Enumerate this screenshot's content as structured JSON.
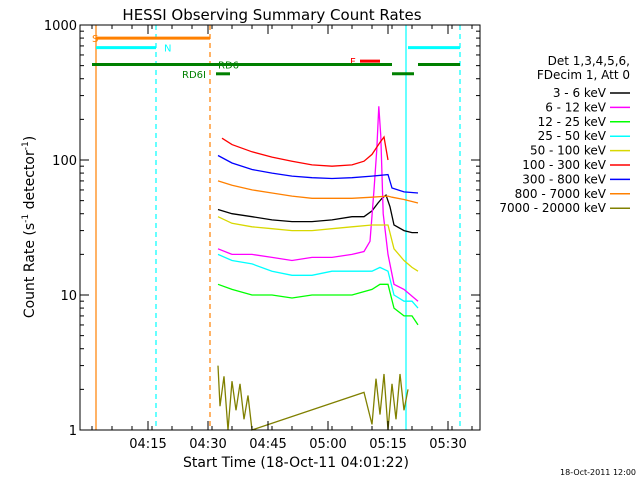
{
  "chart_data": {
    "type": "line",
    "title": "HESSI Observing Summary Count Rates",
    "xlabel": "Start Time (18-Oct-11 04:01:22)",
    "ylabel_main": "Count Rate (s",
    "ylabel_sup": "-1",
    "ylabel_tail": " detector",
    "ylabel_end": ")",
    "y_scale": "log",
    "ylim": [
      1,
      1000
    ],
    "xlim_min": [
      1,
      75
    ],
    "y_ticks": [
      {
        "value": 1,
        "label": "1"
      },
      {
        "value": 10,
        "label": "10"
      },
      {
        "value": 100,
        "label": "100"
      },
      {
        "value": 1000,
        "label": "1000"
      }
    ],
    "x_ticks": [
      {
        "value": 14,
        "label": "04:15"
      },
      {
        "value": 29,
        "label": "04:30"
      },
      {
        "value": 44,
        "label": "04:45"
      },
      {
        "value": 59,
        "label": "05:00"
      },
      {
        "value": 74,
        "label": "05:15"
      },
      {
        "value": 89,
        "label": "05:30"
      }
    ],
    "legend_header": [
      "Det 1,3,4,5,6,",
      "FDecim 1, Att 0"
    ],
    "legend_placement": "right",
    "series": [
      {
        "name": "3 - 6 keV",
        "color": "#000000",
        "values": [
          [
            31.5,
            43
          ],
          [
            35,
            40
          ],
          [
            40,
            38
          ],
          [
            45,
            36
          ],
          [
            50,
            35
          ],
          [
            55,
            35
          ],
          [
            60,
            36
          ],
          [
            65,
            38
          ],
          [
            68,
            38
          ],
          [
            70,
            42
          ],
          [
            71.5,
            48
          ],
          [
            72.5,
            52
          ],
          [
            73.5,
            55
          ],
          [
            74.5,
            45
          ],
          [
            75.5,
            33
          ],
          [
            78,
            30
          ],
          [
            80,
            29
          ],
          [
            81.5,
            29
          ]
        ]
      },
      {
        "name": "6 - 12 keV",
        "color": "#ff00ff",
        "values": [
          [
            31.5,
            22
          ],
          [
            35,
            20
          ],
          [
            40,
            20
          ],
          [
            45,
            19
          ],
          [
            50,
            18
          ],
          [
            55,
            19
          ],
          [
            60,
            19
          ],
          [
            65,
            20
          ],
          [
            68,
            21
          ],
          [
            69.5,
            25
          ],
          [
            70.5,
            60
          ],
          [
            71.2,
            120
          ],
          [
            71.7,
            250
          ],
          [
            72.2,
            150
          ],
          [
            72.8,
            40
          ],
          [
            74,
            20
          ],
          [
            75.5,
            12
          ],
          [
            78,
            11
          ],
          [
            81.5,
            9
          ]
        ]
      },
      {
        "name": "12 - 25 keV",
        "color": "#00ff00",
        "values": [
          [
            31.5,
            12
          ],
          [
            35,
            11
          ],
          [
            40,
            10
          ],
          [
            45,
            10
          ],
          [
            50,
            9.5
          ],
          [
            55,
            10
          ],
          [
            60,
            10
          ],
          [
            65,
            10
          ],
          [
            70,
            11
          ],
          [
            72,
            12
          ],
          [
            74,
            12
          ],
          [
            75.5,
            8
          ],
          [
            78,
            7
          ],
          [
            80,
            7
          ],
          [
            81.5,
            6
          ]
        ]
      },
      {
        "name": "25 - 50 keV",
        "color": "#00ffff",
        "values": [
          [
            31.5,
            20
          ],
          [
            35,
            18
          ],
          [
            40,
            17
          ],
          [
            45,
            15
          ],
          [
            50,
            14
          ],
          [
            55,
            14
          ],
          [
            60,
            15
          ],
          [
            65,
            15
          ],
          [
            70,
            15
          ],
          [
            72,
            16
          ],
          [
            74,
            15
          ],
          [
            75.5,
            10
          ],
          [
            78,
            9
          ],
          [
            80,
            9
          ],
          [
            81.5,
            8
          ]
        ]
      },
      {
        "name": "50 - 100 keV",
        "color": "#d8d800",
        "values": [
          [
            31.5,
            38
          ],
          [
            35,
            34
          ],
          [
            40,
            32
          ],
          [
            45,
            31
          ],
          [
            50,
            30
          ],
          [
            55,
            30
          ],
          [
            60,
            31
          ],
          [
            65,
            32
          ],
          [
            70,
            33
          ],
          [
            74,
            33
          ],
          [
            75.5,
            22
          ],
          [
            78,
            18
          ],
          [
            80,
            16
          ],
          [
            81.5,
            15
          ]
        ]
      },
      {
        "name": "100 - 300 keV",
        "color": "#ff0000",
        "values": [
          [
            32.5,
            145
          ],
          [
            35,
            130
          ],
          [
            40,
            115
          ],
          [
            45,
            105
          ],
          [
            50,
            98
          ],
          [
            55,
            92
          ],
          [
            60,
            90
          ],
          [
            65,
            92
          ],
          [
            68,
            98
          ],
          [
            70,
            110
          ],
          [
            72,
            135
          ],
          [
            73,
            148
          ],
          [
            74,
            100
          ]
        ]
      },
      {
        "name": "300 - 800 keV",
        "color": "#0000ff",
        "values": [
          [
            31.5,
            108
          ],
          [
            35,
            95
          ],
          [
            40,
            85
          ],
          [
            45,
            80
          ],
          [
            50,
            76
          ],
          [
            55,
            74
          ],
          [
            60,
            73
          ],
          [
            65,
            74
          ],
          [
            70,
            76
          ],
          [
            74,
            78
          ],
          [
            75,
            62
          ],
          [
            78,
            58
          ],
          [
            81.5,
            57
          ]
        ]
      },
      {
        "name": "800 - 7000 keV",
        "color": "#ff8000",
        "values": [
          [
            31.5,
            70
          ],
          [
            35,
            65
          ],
          [
            40,
            60
          ],
          [
            45,
            57
          ],
          [
            50,
            54
          ],
          [
            55,
            52
          ],
          [
            60,
            52
          ],
          [
            65,
            52
          ],
          [
            70,
            53
          ],
          [
            74,
            54
          ],
          [
            75,
            53
          ],
          [
            78,
            51
          ],
          [
            81.5,
            48
          ]
        ]
      },
      {
        "name": "7000 - 20000 keV",
        "color": "#808000",
        "values": [
          [
            31.5,
            3
          ],
          [
            32,
            1.5
          ],
          [
            33,
            2.5
          ],
          [
            34,
            1
          ],
          [
            35,
            2.3
          ],
          [
            36,
            1.4
          ],
          [
            37,
            2.2
          ],
          [
            38,
            1.2
          ],
          [
            39,
            1.8
          ],
          [
            40,
            1
          ],
          [
            68,
            1.9
          ],
          [
            70,
            1.1
          ],
          [
            71,
            2.4
          ],
          [
            72,
            1.3
          ],
          [
            73,
            2.6
          ],
          [
            74,
            1
          ],
          [
            75,
            2.2
          ],
          [
            76,
            1.2
          ],
          [
            77,
            2.6
          ],
          [
            78,
            1.4
          ],
          [
            79,
            2
          ]
        ]
      }
    ],
    "flags": [
      {
        "label": "S",
        "color": "#ff8000",
        "y": 800,
        "segments": [
          [
            1,
            29.5
          ]
        ],
        "label_x": 0
      },
      {
        "label": "N",
        "color": "#00ffff",
        "y": 680,
        "segments": [
          [
            1,
            16
          ],
          [
            79,
            92
          ]
        ],
        "label_x": 18
      },
      {
        "label": "F",
        "color": "#ff0000",
        "y": 540,
        "segments": [
          [
            67,
            72
          ]
        ],
        "label_x": 64.5
      },
      {
        "label": "RD6",
        "color": "#008000",
        "y": 510,
        "segments": [
          [
            0,
            75
          ],
          [
            81.5,
            92
          ]
        ],
        "label_x": 31.5
      },
      {
        "label": "",
        "color": "#008000",
        "y": 435,
        "segments": [
          [
            75,
            80.5
          ]
        ],
        "label_x": 0
      },
      {
        "label": "RD6I",
        "color": "#008000",
        "y": 435,
        "segments": [
          [
            31,
            34.5
          ]
        ],
        "label_x": 22.5
      }
    ],
    "vlines": [
      {
        "x": 1,
        "color": "#ff8000",
        "dash": false
      },
      {
        "x": 16,
        "color": "#00ffff",
        "dash": true
      },
      {
        "x": 29.5,
        "color": "#ff8000",
        "dash": true
      },
      {
        "x": 78.5,
        "color": "#00ffff",
        "dash": false
      },
      {
        "x": 92,
        "color": "#00ffff",
        "dash": true
      }
    ]
  },
  "footer_timestamp": "18-Oct-2011 12:00"
}
